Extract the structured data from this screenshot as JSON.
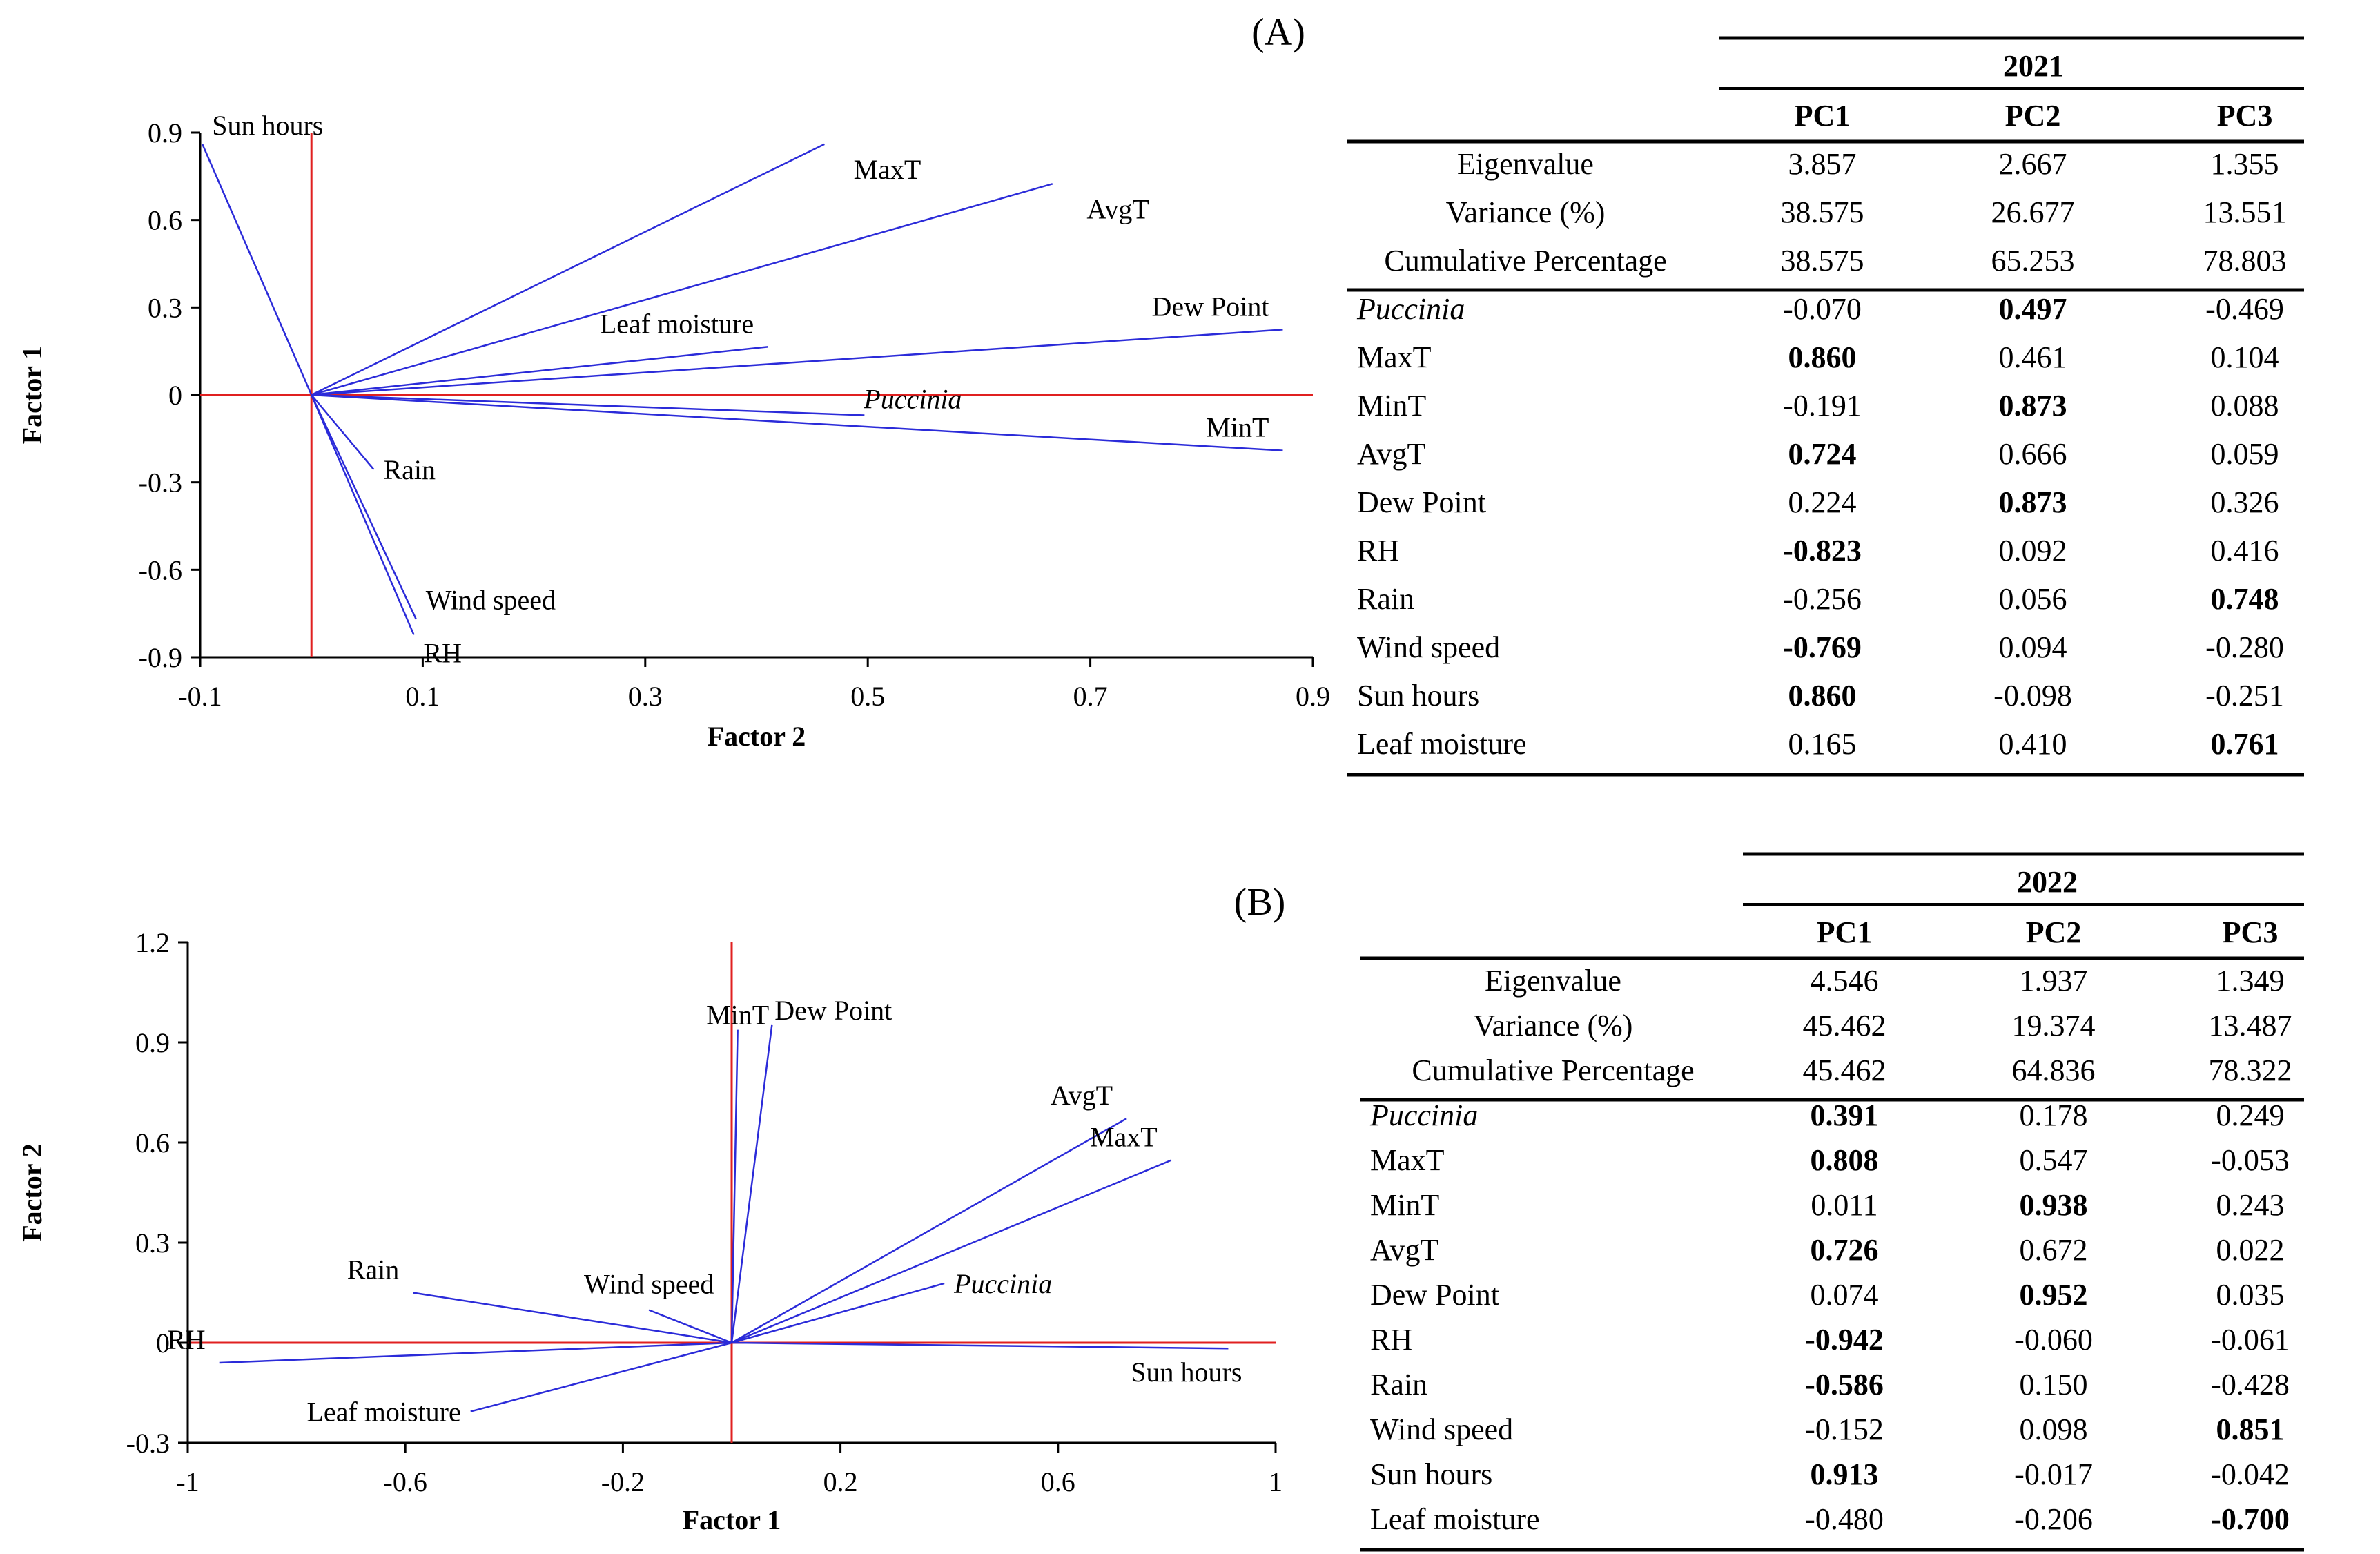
{
  "chart_data": [
    {
      "type": "biplot",
      "panel": "(A)",
      "xlabel": "Factor 2",
      "ylabel": "Factor 1",
      "xlim": [
        -0.1,
        0.9
      ],
      "ylim": [
        -0.9,
        0.9
      ],
      "xticks": [
        "-0.1",
        "0.1",
        "0.3",
        "0.5",
        "0.7",
        "0.9"
      ],
      "xtick_values": [
        -0.1,
        0.1,
        0.3,
        0.5,
        0.7,
        0.9
      ],
      "yticks": [
        "0.9",
        "0.6",
        "0.3",
        "0",
        "-0.3",
        "-0.6",
        "-0.9"
      ],
      "ytick_values": [
        0.9,
        0.6,
        0.3,
        0,
        -0.3,
        -0.6,
        -0.9
      ],
      "vectors": [
        {
          "label": "Sun hours",
          "x": -0.098,
          "y": 0.86,
          "italic": false,
          "anchor": "right-above"
        },
        {
          "label": "MaxT",
          "x": 0.461,
          "y": 0.86,
          "italic": false,
          "anchor": "below-right"
        },
        {
          "label": "AvgT",
          "x": 0.666,
          "y": 0.724,
          "italic": false,
          "anchor": "below-right"
        },
        {
          "label": "Leaf moisture",
          "x": 0.41,
          "y": 0.165,
          "italic": false,
          "anchor": "above-left"
        },
        {
          "label": "Dew Point",
          "x": 0.873,
          "y": 0.224,
          "italic": false,
          "anchor": "above-left"
        },
        {
          "label": "Puccinia",
          "x": 0.497,
          "y": -0.07,
          "italic": true,
          "anchor": "above"
        },
        {
          "label": "MinT",
          "x": 0.873,
          "y": -0.191,
          "italic": false,
          "anchor": "above-left"
        },
        {
          "label": "Rain",
          "x": 0.056,
          "y": -0.256,
          "italic": false,
          "anchor": "right"
        },
        {
          "label": "Wind speed",
          "x": 0.094,
          "y": -0.769,
          "italic": false,
          "anchor": "right-above"
        },
        {
          "label": "RH",
          "x": 0.092,
          "y": -0.823,
          "italic": false,
          "anchor": "right-below"
        }
      ]
    },
    {
      "type": "biplot",
      "panel": "(B)",
      "xlabel": "Factor 1",
      "ylabel": "Factor 2",
      "xlim": [
        -1,
        1
      ],
      "ylim": [
        -0.3,
        1.2
      ],
      "xticks": [
        "-1",
        "-0.6",
        "-0.2",
        "0.2",
        "0.6",
        "1"
      ],
      "xtick_values": [
        -1,
        -0.6,
        -0.2,
        0.2,
        0.6,
        1
      ],
      "yticks": [
        "1.2",
        "0.9",
        "0.6",
        "0.3",
        "0",
        "-0.3"
      ],
      "ytick_values": [
        1.2,
        0.9,
        0.6,
        0.3,
        0,
        -0.3
      ],
      "vectors": [
        {
          "label": "MinT",
          "x": 0.011,
          "y": 0.938,
          "italic": false,
          "anchor": "min"
        },
        {
          "label": "Dew Point",
          "x": 0.074,
          "y": 0.952,
          "italic": false,
          "anchor": "dew"
        },
        {
          "label": "AvgT",
          "x": 0.726,
          "y": 0.672,
          "italic": false,
          "anchor": "above-left"
        },
        {
          "label": "MaxT",
          "x": 0.808,
          "y": 0.547,
          "italic": false,
          "anchor": "above-left"
        },
        {
          "label": "Puccinia",
          "x": 0.391,
          "y": 0.178,
          "italic": true,
          "anchor": "right"
        },
        {
          "label": "Sun hours",
          "x": 0.913,
          "y": -0.017,
          "italic": false,
          "anchor": "below-left"
        },
        {
          "label": "Rain",
          "x": -0.586,
          "y": 0.15,
          "italic": false,
          "anchor": "above-left"
        },
        {
          "label": "Wind speed",
          "x": -0.152,
          "y": 0.098,
          "italic": false,
          "anchor": "above-center"
        },
        {
          "label": "RH",
          "x": -0.942,
          "y": -0.06,
          "italic": false,
          "anchor": "above-left"
        },
        {
          "label": "Leaf moisture",
          "x": -0.48,
          "y": -0.206,
          "italic": false,
          "anchor": "left"
        }
      ]
    },
    {
      "type": "table",
      "year": "2021",
      "columns": [
        "PC1",
        "PC2",
        "PC3"
      ],
      "summary_rows": [
        {
          "label": "Eigenvalue",
          "values": [
            "3.857",
            "2.667",
            "1.355"
          ]
        },
        {
          "label": "Variance (%)",
          "values": [
            "38.575",
            "26.677",
            "13.551"
          ]
        },
        {
          "label": "Cumulative Percentage",
          "values": [
            "38.575",
            "65.253",
            "78.803"
          ]
        }
      ],
      "loading_rows": [
        {
          "label": "Puccinia",
          "italic": true,
          "values": [
            "-0.070",
            "0.497",
            "-0.469"
          ],
          "bold": [
            false,
            true,
            false
          ]
        },
        {
          "label": "MaxT",
          "italic": false,
          "values": [
            "0.860",
            "0.461",
            "0.104"
          ],
          "bold": [
            true,
            false,
            false
          ]
        },
        {
          "label": "MinT",
          "italic": false,
          "values": [
            "-0.191",
            "0.873",
            "0.088"
          ],
          "bold": [
            false,
            true,
            false
          ]
        },
        {
          "label": "AvgT",
          "italic": false,
          "values": [
            "0.724",
            "0.666",
            "0.059"
          ],
          "bold": [
            true,
            false,
            false
          ]
        },
        {
          "label": "Dew Point",
          "italic": false,
          "values": [
            "0.224",
            "0.873",
            "0.326"
          ],
          "bold": [
            false,
            true,
            false
          ]
        },
        {
          "label": "RH",
          "italic": false,
          "values": [
            "-0.823",
            "0.092",
            "0.416"
          ],
          "bold": [
            true,
            false,
            false
          ]
        },
        {
          "label": "Rain",
          "italic": false,
          "values": [
            "-0.256",
            "0.056",
            "0.748"
          ],
          "bold": [
            false,
            false,
            true
          ]
        },
        {
          "label": "Wind speed",
          "italic": false,
          "values": [
            "-0.769",
            "0.094",
            "-0.280"
          ],
          "bold": [
            true,
            false,
            false
          ]
        },
        {
          "label": "Sun hours",
          "italic": false,
          "values": [
            "0.860",
            "-0.098",
            "-0.251"
          ],
          "bold": [
            true,
            false,
            false
          ]
        },
        {
          "label": "Leaf moisture",
          "italic": false,
          "values": [
            "0.165",
            "0.410",
            "0.761"
          ],
          "bold": [
            false,
            false,
            true
          ]
        }
      ]
    },
    {
      "type": "table",
      "year": "2022",
      "columns": [
        "PC1",
        "PC2",
        "PC3"
      ],
      "summary_rows": [
        {
          "label": "Eigenvalue",
          "values": [
            "4.546",
            "1.937",
            "1.349"
          ]
        },
        {
          "label": "Variance (%)",
          "values": [
            "45.462",
            "19.374",
            "13.487"
          ]
        },
        {
          "label": "Cumulative Percentage",
          "values": [
            "45.462",
            "64.836",
            "78.322"
          ]
        }
      ],
      "loading_rows": [
        {
          "label": "Puccinia",
          "italic": true,
          "values": [
            "0.391",
            "0.178",
            "0.249"
          ],
          "bold": [
            true,
            false,
            false
          ]
        },
        {
          "label": "MaxT",
          "italic": false,
          "values": [
            "0.808",
            "0.547",
            "-0.053"
          ],
          "bold": [
            true,
            false,
            false
          ]
        },
        {
          "label": "MinT",
          "italic": false,
          "values": [
            "0.011",
            "0.938",
            "0.243"
          ],
          "bold": [
            false,
            true,
            false
          ]
        },
        {
          "label": "AvgT",
          "italic": false,
          "values": [
            "0.726",
            "0.672",
            "0.022"
          ],
          "bold": [
            true,
            false,
            false
          ]
        },
        {
          "label": "Dew Point",
          "italic": false,
          "values": [
            "0.074",
            "0.952",
            "0.035"
          ],
          "bold": [
            false,
            true,
            false
          ]
        },
        {
          "label": "RH",
          "italic": false,
          "values": [
            "-0.942",
            "-0.060",
            "-0.061"
          ],
          "bold": [
            true,
            false,
            false
          ]
        },
        {
          "label": "Rain",
          "italic": false,
          "values": [
            "-0.586",
            "0.150",
            "-0.428"
          ],
          "bold": [
            true,
            false,
            false
          ]
        },
        {
          "label": "Wind speed",
          "italic": false,
          "values": [
            "-0.152",
            "0.098",
            "0.851"
          ],
          "bold": [
            false,
            false,
            true
          ]
        },
        {
          "label": "Sun hours",
          "italic": false,
          "values": [
            "0.913",
            "-0.017",
            "-0.042"
          ],
          "bold": [
            true,
            false,
            false
          ]
        },
        {
          "label": "Leaf moisture",
          "italic": false,
          "values": [
            "-0.480",
            "-0.206",
            "-0.700"
          ],
          "bold": [
            false,
            false,
            true
          ]
        }
      ]
    }
  ],
  "colors": {
    "vector": "#2b2bd9",
    "crosshair": "#e02020",
    "axis": "#000000",
    "text": "#000000"
  }
}
